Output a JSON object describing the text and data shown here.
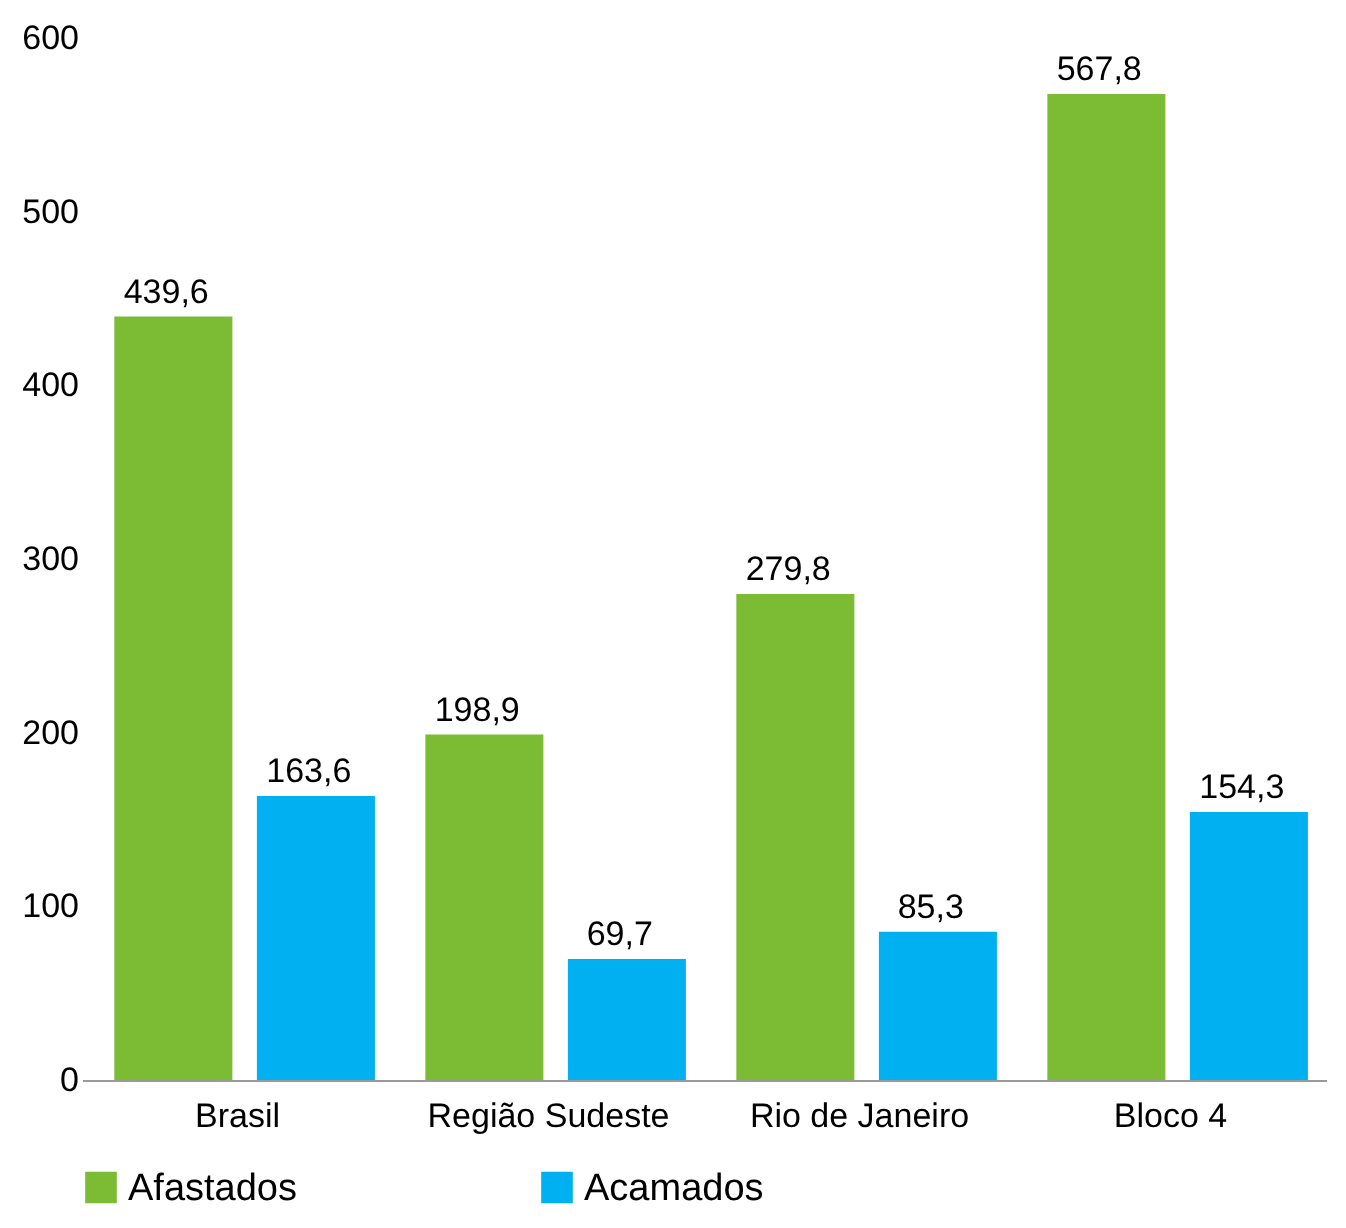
{
  "chart_data": {
    "type": "bar",
    "categories": [
      "Brasil",
      "Região Sudeste",
      "Rio de Janeiro",
      "Bloco 4"
    ],
    "series": [
      {
        "name": "Afastados",
        "color": "#7cbb34",
        "values": [
          439.6,
          198.9,
          279.8,
          567.8
        ],
        "value_labels": [
          "439,6",
          "198,9",
          "279,8",
          "567,8"
        ]
      },
      {
        "name": "Acamados",
        "color": "#00b0f0",
        "values": [
          163.6,
          69.7,
          85.3,
          154.3
        ],
        "value_labels": [
          "163,6",
          "69,7",
          "85,3",
          "154,3"
        ]
      }
    ],
    "ylim": [
      0,
      600
    ],
    "yticks": [
      0,
      100,
      200,
      300,
      400,
      500,
      600
    ],
    "grid": false,
    "legend": "bottom"
  }
}
